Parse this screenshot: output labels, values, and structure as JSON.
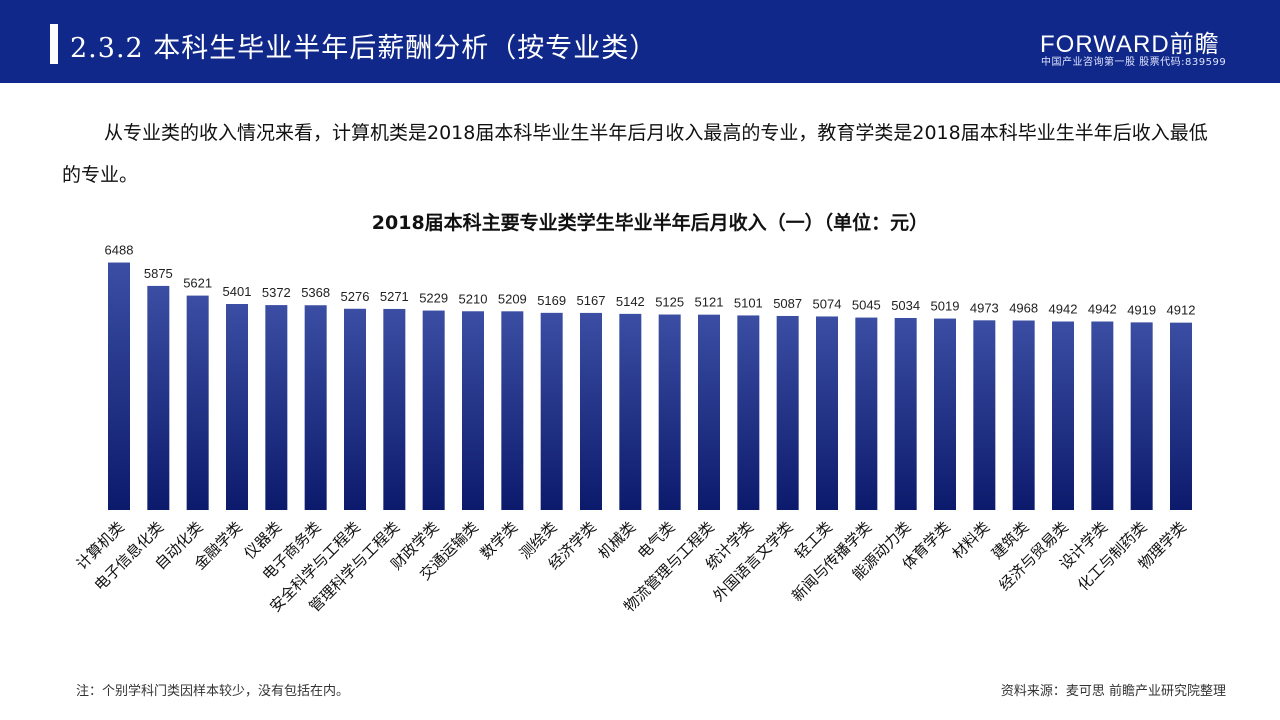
{
  "header": {
    "title": "2.3.2 本科生毕业半年后薪酬分析（按专业类）",
    "logo": "FORWARD前瞻",
    "logo_sub": "中国产业咨询第一股  股票代码:839599"
  },
  "intro": "从专业类的收入情况来看，计算机类是2018届本科毕业生半年后月收入最高的专业，教育学类是2018届本科毕业生半年后收入最低的专业。",
  "chart_data": {
    "type": "bar",
    "title": "2018届本科主要专业类学生毕业半年后月收入（一）（单位：元）",
    "categories": [
      "计算机类",
      "电子信息化类",
      "自动化类",
      "金融学类",
      "仪器类",
      "电子商务类",
      "安全科学与工程类",
      "管理科学与工程类",
      "财政学类",
      "交通运输类",
      "数学类",
      "测绘类",
      "经济学类",
      "机械类",
      "电气类",
      "物流管理与工程类",
      "统计学类",
      "外国语言文学类",
      "轻工类",
      "新闻与传播学类",
      "能源动力类",
      "体育学类",
      "材料类",
      "建筑类",
      "经济与贸易类",
      "设计学类",
      "化工与制药类",
      "物理学类"
    ],
    "values": [
      6488,
      5875,
      5621,
      5401,
      5372,
      5368,
      5276,
      5271,
      5229,
      5210,
      5209,
      5169,
      5167,
      5142,
      5125,
      5121,
      5101,
      5087,
      5074,
      5045,
      5034,
      5019,
      4973,
      4968,
      4942,
      4942,
      4919,
      4912
    ],
    "ylim": [
      0,
      7000
    ],
    "grid": false,
    "bar_color_top": "#3b4ea3",
    "bar_color_bottom": "#0c1a6c"
  },
  "footer": {
    "note": "注：个别学科门类因样本较少，没有包括在内。",
    "source": "资料来源：麦可思 前瞻产业研究院整理"
  },
  "colors": {
    "header": "#10288a"
  }
}
